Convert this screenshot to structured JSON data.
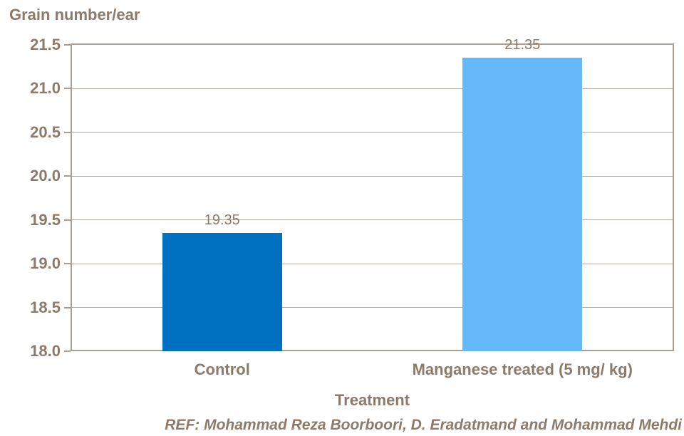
{
  "footer": {
    "ref_text": "REF: Mohammad Reza Boorboori, D. Eradatmand and Mohammad Mehdi"
  },
  "colors": {
    "text_color": "#8C7B6B",
    "axis_color": "#A89E93",
    "grid_color": "#B3A99C"
  },
  "chart_data": {
    "type": "bar",
    "title": "Grain number/ear",
    "xlabel": "Treatment",
    "ylabel": "Grain number/ear",
    "categories": [
      "Control",
      "Manganese treated (5 mg/ kg)"
    ],
    "values": [
      19.35,
      21.35
    ],
    "data_labels": [
      "19.35",
      "21.35"
    ],
    "bar_colors": [
      "#0070C0",
      "#65B9F8"
    ],
    "ylim": [
      18.0,
      21.5
    ],
    "ytick_step": 0.5,
    "ytick_labels": [
      "21.5",
      "21.0",
      "20.5",
      "20.0",
      "19.5",
      "19.0",
      "18.5",
      "18.0"
    ],
    "grid": true,
    "legend": false
  }
}
